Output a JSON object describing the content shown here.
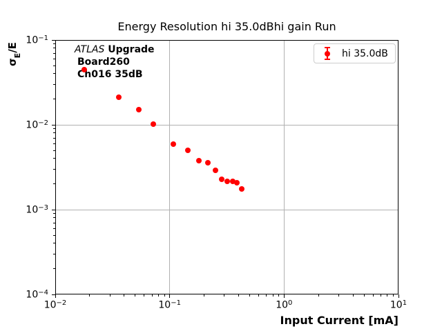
{
  "figure": {
    "title": "Energy Resolution hi 35.0dBhi gain Run",
    "background_color": "#ffffff"
  },
  "axes": {
    "xlabel": "Input Current [mA]",
    "ylabel": {
      "sigma": "σ",
      "subscript": "E",
      "rest": "/E"
    },
    "x_tick_exponents": [
      -2,
      -1,
      0,
      1
    ],
    "y_tick_exponents": [
      -1,
      -2,
      -3,
      -4
    ],
    "tick_base": "10",
    "grid_color": "#b0b0b0",
    "spine_color": "#000000"
  },
  "annotation": {
    "line1_italic": "ATLAS",
    "line1_bold": " Upgrade",
    "line2": "Board260",
    "line3": "Ch016 35dB"
  },
  "legend": {
    "label": "hi 35.0dB",
    "marker_color": "#ff0000",
    "border_color": "#cccccc"
  },
  "chart_data": {
    "type": "scatter",
    "title": "Energy Resolution hi 35.0dBhi gain Run",
    "xlabel": "Input Current [mA]",
    "ylabel": "σE/E",
    "xscale": "log",
    "yscale": "log",
    "xlim": [
      0.01,
      10
    ],
    "ylim": [
      0.0001,
      0.1
    ],
    "grid": true,
    "legend_position": "upper right",
    "series": [
      {
        "name": "hi 35.0dB",
        "color": "#ff0000",
        "marker": "circle-errorbar",
        "x": [
          0.018,
          0.036,
          0.054,
          0.072,
          0.107,
          0.144,
          0.179,
          0.216,
          0.25,
          0.285,
          0.32,
          0.357,
          0.385,
          0.426
        ],
        "y": [
          0.045,
          0.021,
          0.0152,
          0.0102,
          0.0059,
          0.005,
          0.0038,
          0.0036,
          0.0029,
          0.0023,
          0.00214,
          0.00215,
          0.00206,
          0.00175
        ]
      }
    ]
  }
}
